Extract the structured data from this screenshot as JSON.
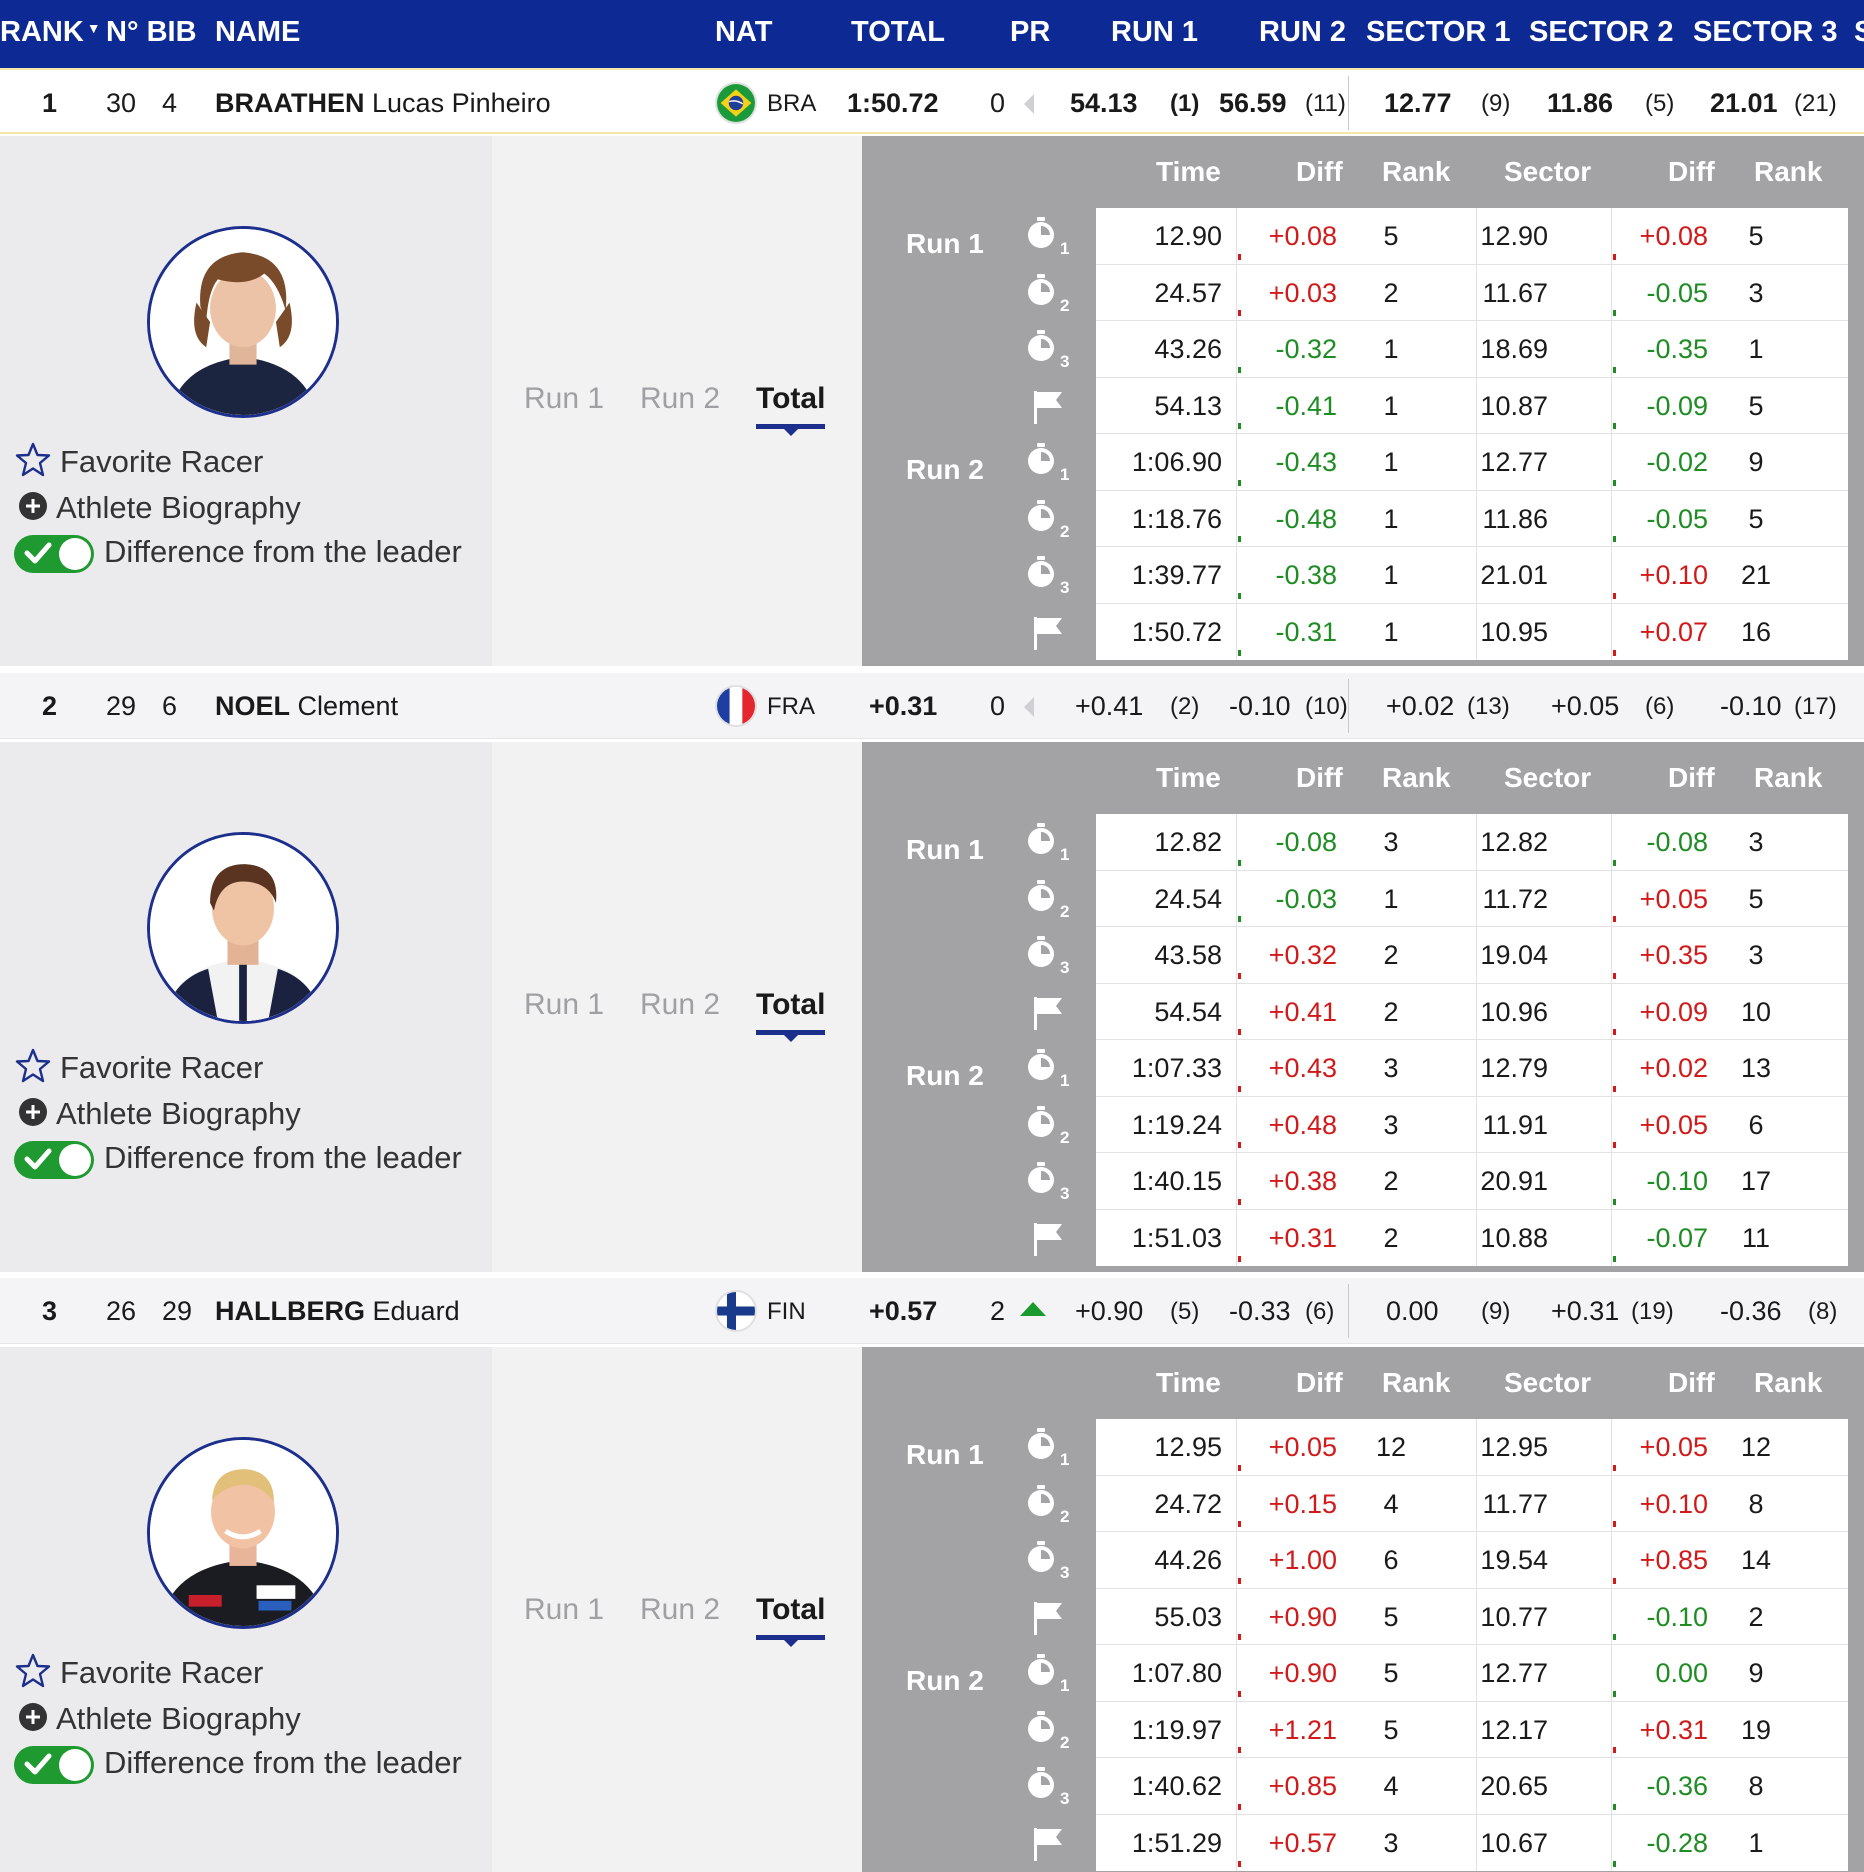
{
  "header": {
    "rank": "RANK",
    "bib": "N° BIB",
    "name": "NAME",
    "nat": "NAT",
    "total": "TOTAL",
    "pr": "PR",
    "run1": "RUN 1",
    "run2": "RUN 2",
    "sector1": "SECTOR 1",
    "sector2": "SECTOR 2",
    "sector3": "SECTOR 3",
    "overflow": "S"
  },
  "labels": {
    "favorite": "Favorite Racer",
    "biography": "Athlete Biography",
    "difference": "Difference from the leader",
    "tab_run1": "Run 1",
    "tab_run2": "Run 2",
    "tab_total": "Total",
    "col_time": "Time",
    "col_diff": "Diff",
    "col_rank": "Rank",
    "col_sector": "Sector",
    "col_sdiff": "Diff",
    "col_srank": "Rank",
    "run1": "Run 1",
    "run2": "Run 2",
    "split_icons": [
      "stopwatch-icon-1",
      "stopwatch-icon-2",
      "stopwatch-icon-3",
      "finish-flag-icon",
      "stopwatch-icon-1",
      "stopwatch-icon-2",
      "stopwatch-icon-3",
      "finish-flag-icon"
    ]
  },
  "colors": {
    "header_bg": "#0d2a94",
    "positive": "#d11a1a",
    "negative": "#1f8c24",
    "toggle_on": "#1f9a31"
  },
  "athletes": [
    {
      "rank": "1",
      "start": "30",
      "bib": "4",
      "last": "BRAATHEN",
      "first": "Lucas Pinheiro",
      "nat": "BRA",
      "total": "1:50.72",
      "pr": "0",
      "pr_trend": "none",
      "run1": "54.13",
      "run1_rank": "(1)",
      "run2": "56.59",
      "run2_rank": "(11)",
      "s1": "12.77",
      "s1_rank": "(9)",
      "s2": "11.86",
      "s2_rank": "(5)",
      "s3": "21.01",
      "s3_rank": "(21)",
      "splits": [
        {
          "time": "12.90",
          "diff": "+0.08",
          "rank": "5",
          "sector": "12.90",
          "sdiff": "+0.08",
          "srank": "5"
        },
        {
          "time": "24.57",
          "diff": "+0.03",
          "rank": "2",
          "sector": "11.67",
          "sdiff": "-0.05",
          "srank": "3"
        },
        {
          "time": "43.26",
          "diff": "-0.32",
          "rank": "1",
          "sector": "18.69",
          "sdiff": "-0.35",
          "srank": "1"
        },
        {
          "time": "54.13",
          "diff": "-0.41",
          "rank": "1",
          "sector": "10.87",
          "sdiff": "-0.09",
          "srank": "5"
        },
        {
          "time": "1:06.90",
          "diff": "-0.43",
          "rank": "1",
          "sector": "12.77",
          "sdiff": "-0.02",
          "srank": "9"
        },
        {
          "time": "1:18.76",
          "diff": "-0.48",
          "rank": "1",
          "sector": "11.86",
          "sdiff": "-0.05",
          "srank": "5"
        },
        {
          "time": "1:39.77",
          "diff": "-0.38",
          "rank": "1",
          "sector": "21.01",
          "sdiff": "+0.10",
          "srank": "21"
        },
        {
          "time": "1:50.72",
          "diff": "-0.31",
          "rank": "1",
          "sector": "10.95",
          "sdiff": "+0.07",
          "srank": "16"
        }
      ]
    },
    {
      "rank": "2",
      "start": "29",
      "bib": "6",
      "last": "NOEL",
      "first": "Clement",
      "nat": "FRA",
      "total": "+0.31",
      "pr": "0",
      "pr_trend": "none",
      "run1": "+0.41",
      "run1_rank": "(2)",
      "run2": "-0.10",
      "run2_rank": "(10)",
      "s1": "+0.02",
      "s1_rank": "(13)",
      "s2": "+0.05",
      "s2_rank": "(6)",
      "s3": "-0.10",
      "s3_rank": "(17)",
      "splits": [
        {
          "time": "12.82",
          "diff": "-0.08",
          "rank": "3",
          "sector": "12.82",
          "sdiff": "-0.08",
          "srank": "3"
        },
        {
          "time": "24.54",
          "diff": "-0.03",
          "rank": "1",
          "sector": "11.72",
          "sdiff": "+0.05",
          "srank": "5"
        },
        {
          "time": "43.58",
          "diff": "+0.32",
          "rank": "2",
          "sector": "19.04",
          "sdiff": "+0.35",
          "srank": "3"
        },
        {
          "time": "54.54",
          "diff": "+0.41",
          "rank": "2",
          "sector": "10.96",
          "sdiff": "+0.09",
          "srank": "10"
        },
        {
          "time": "1:07.33",
          "diff": "+0.43",
          "rank": "3",
          "sector": "12.79",
          "sdiff": "+0.02",
          "srank": "13"
        },
        {
          "time": "1:19.24",
          "diff": "+0.48",
          "rank": "3",
          "sector": "11.91",
          "sdiff": "+0.05",
          "srank": "6"
        },
        {
          "time": "1:40.15",
          "diff": "+0.38",
          "rank": "2",
          "sector": "20.91",
          "sdiff": "-0.10",
          "srank": "17"
        },
        {
          "time": "1:51.03",
          "diff": "+0.31",
          "rank": "2",
          "sector": "10.88",
          "sdiff": "-0.07",
          "srank": "11"
        }
      ]
    },
    {
      "rank": "3",
      "start": "26",
      "bib": "29",
      "last": "HALLBERG",
      "first": "Eduard",
      "nat": "FIN",
      "total": "+0.57",
      "pr": "2",
      "pr_trend": "up",
      "run1": "+0.90",
      "run1_rank": "(5)",
      "run2": "-0.33",
      "run2_rank": "(6)",
      "s1": "0.00",
      "s1_rank": "(9)",
      "s2": "+0.31",
      "s2_rank": "(19)",
      "s3": "-0.36",
      "s3_rank": "(8)",
      "splits": [
        {
          "time": "12.95",
          "diff": "+0.05",
          "rank": "12",
          "sector": "12.95",
          "sdiff": "+0.05",
          "srank": "12"
        },
        {
          "time": "24.72",
          "diff": "+0.15",
          "rank": "4",
          "sector": "11.77",
          "sdiff": "+0.10",
          "srank": "8"
        },
        {
          "time": "44.26",
          "diff": "+1.00",
          "rank": "6",
          "sector": "19.54",
          "sdiff": "+0.85",
          "srank": "14"
        },
        {
          "time": "55.03",
          "diff": "+0.90",
          "rank": "5",
          "sector": "10.77",
          "sdiff": "-0.10",
          "srank": "2"
        },
        {
          "time": "1:07.80",
          "diff": "+0.90",
          "rank": "5",
          "sector": "12.77",
          "sdiff": "0.00",
          "srank": "9"
        },
        {
          "time": "1:19.97",
          "diff": "+1.21",
          "rank": "5",
          "sector": "12.17",
          "sdiff": "+0.31",
          "srank": "19"
        },
        {
          "time": "1:40.62",
          "diff": "+0.85",
          "rank": "4",
          "sector": "20.65",
          "sdiff": "-0.36",
          "srank": "8"
        },
        {
          "time": "1:51.29",
          "diff": "+0.57",
          "rank": "3",
          "sector": "10.67",
          "sdiff": "-0.28",
          "srank": "1"
        }
      ]
    }
  ]
}
